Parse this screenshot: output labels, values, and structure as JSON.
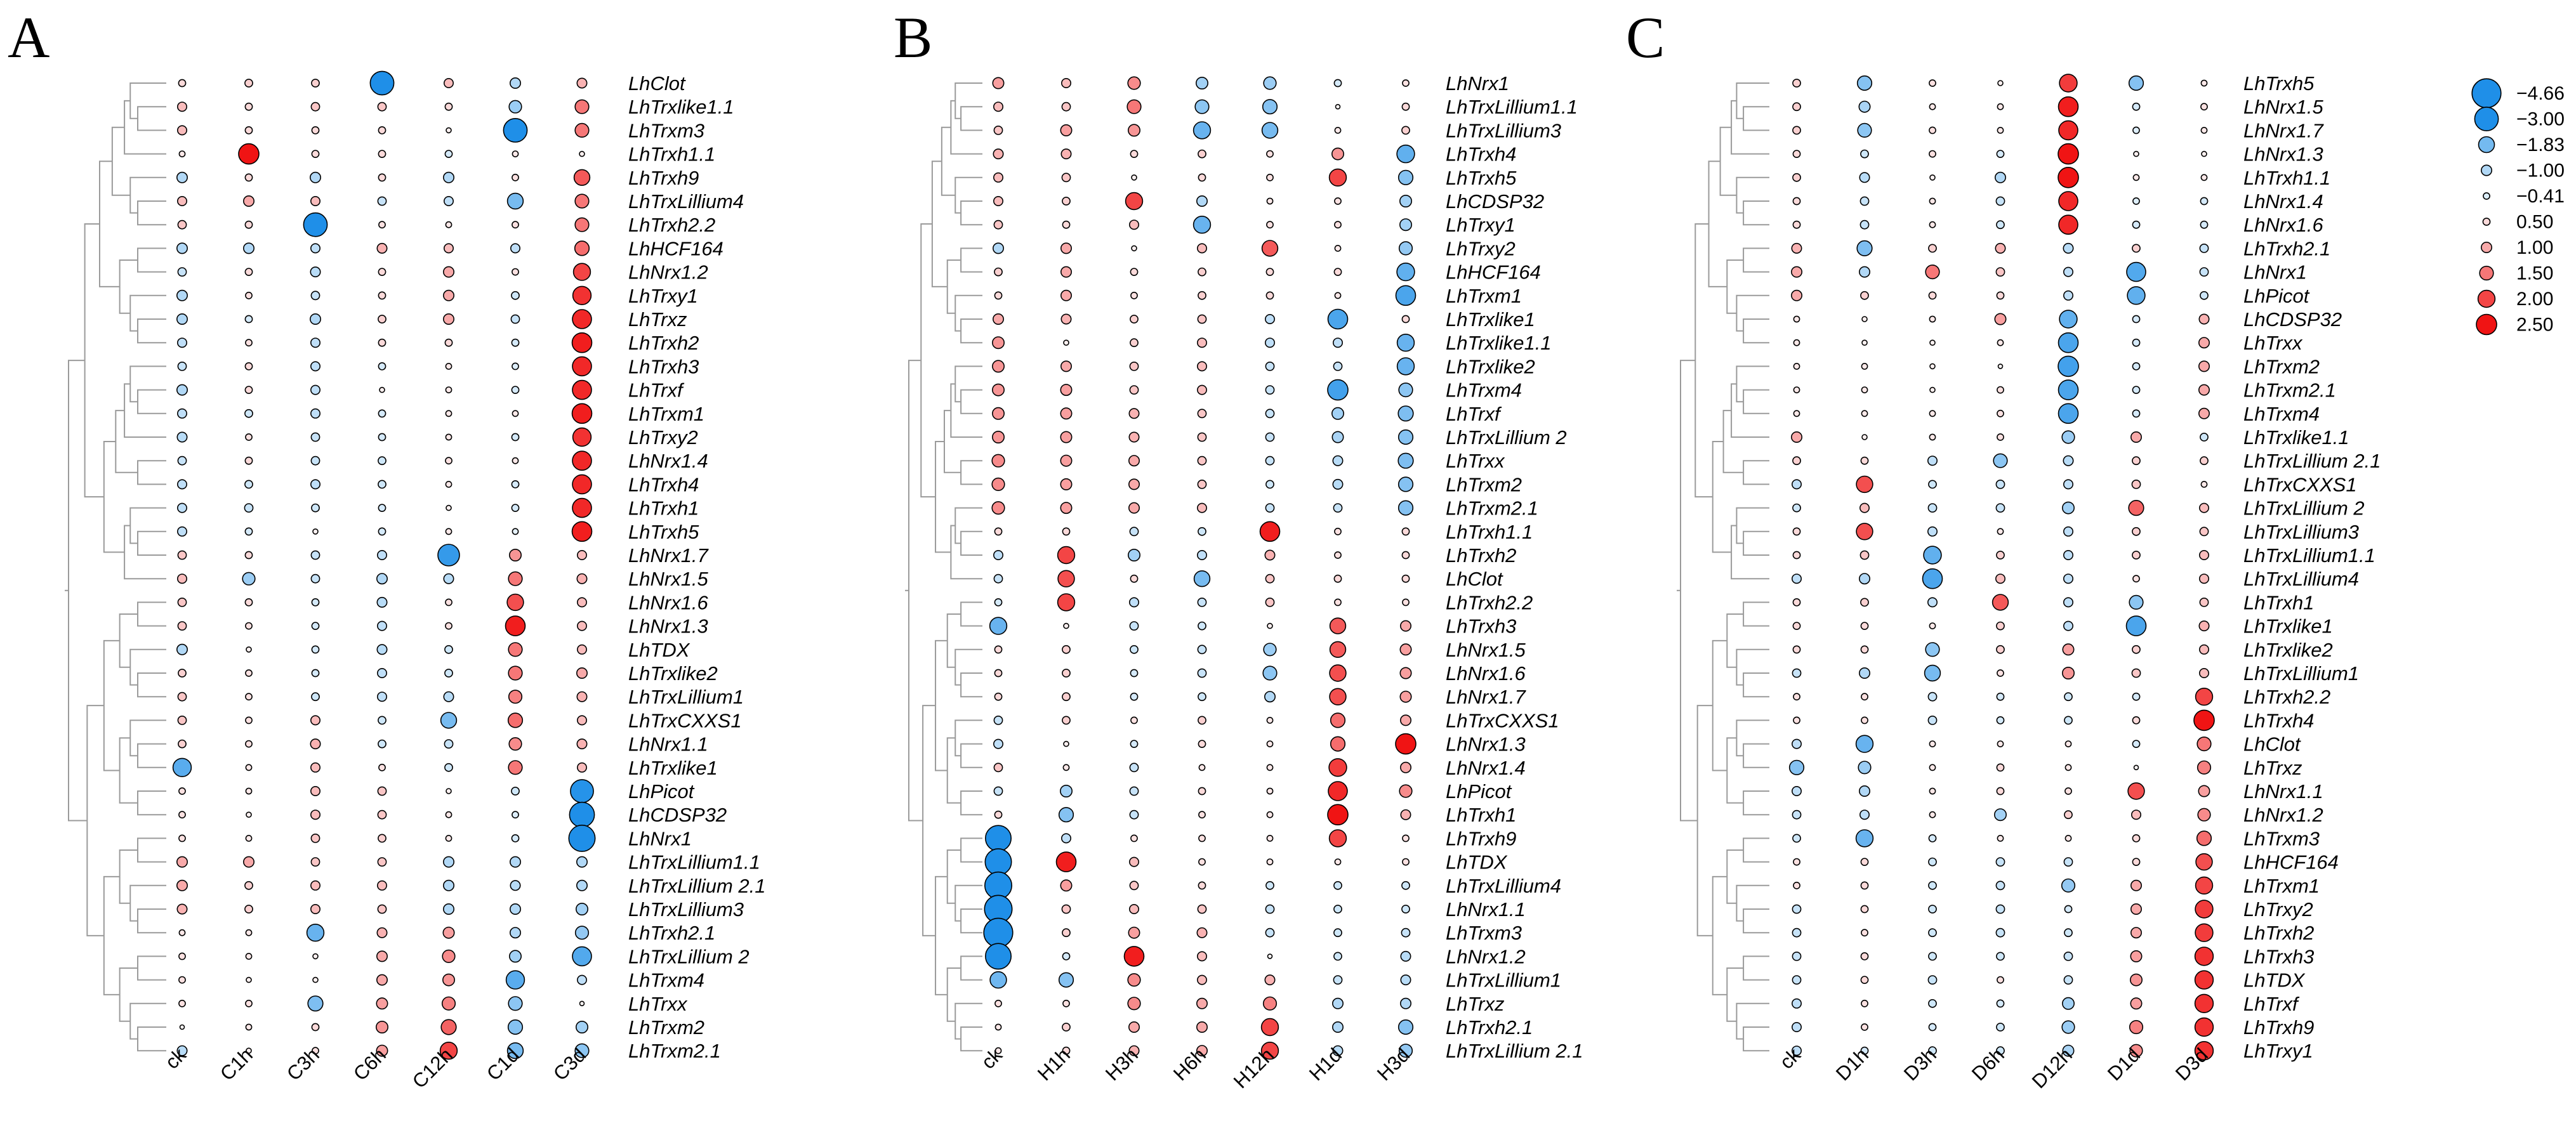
{
  "chart_data": [
    {
      "type": "heatmap",
      "panel_label": "A",
      "columns": [
        "ck",
        "C1h",
        "C3h",
        "C6h",
        "C12h",
        "C1d",
        "C3d"
      ],
      "rows": [
        "LhClot",
        "LhTrxlike1.1",
        "LhTrxm3",
        "LhTrxh1.1",
        "LhTrxh9",
        "LhTrxLillium4",
        "LhTrxh2.2",
        "LhHCF164",
        "LhNrx1.2",
        "LhTrxy1",
        "LhTrxz",
        "LhTrxh2",
        "LhTrxh3",
        "LhTrxf",
        "LhTrxm1",
        "LhTrxy2",
        "LhNrx1.4",
        "LhTrxh4",
        "LhTrxh1",
        "LhTrxh5",
        "LhNrx1.7",
        "LhNrx1.5",
        "LhNrx1.6",
        "LhNrx1.3",
        "LhTDX",
        "LhTrxlike2",
        "LhTrxLillium1",
        "LhTrxCXXS1",
        "LhNrx1.1",
        "LhTrxlike1",
        "LhPicot",
        "LhCDSP32",
        "LhNrx1",
        "LhTrxLillium1.1",
        "LhTrxLillium 2.1",
        "LhTrxLillium3",
        "LhTrxh2.1",
        "LhTrxLillium 2",
        "LhTrxm4",
        "LhTrxx",
        "LhTrxm2",
        "LhTrxm2.1"
      ],
      "values": [
        [
          0.5,
          0.6,
          0.6,
          -3.0,
          0.8,
          -1.0,
          0.9
        ],
        [
          0.8,
          0.5,
          0.7,
          0.7,
          0.5,
          -1.3,
          1.5
        ],
        [
          0.8,
          0.5,
          0.5,
          0.5,
          0.2,
          -3.0,
          1.5
        ],
        [
          0.3,
          2.5,
          0.5,
          0.5,
          -0.5,
          0.3,
          0.2
        ],
        [
          -1.0,
          0.5,
          -1.0,
          0.5,
          -1.0,
          0.4,
          1.8
        ],
        [
          0.8,
          1.0,
          0.8,
          -0.7,
          -0.8,
          -1.8,
          1.5
        ],
        [
          0.7,
          0.5,
          -3.0,
          0.4,
          0.3,
          0.4,
          1.5
        ],
        [
          -1.0,
          -1.0,
          -0.8,
          0.9,
          0.8,
          -0.8,
          1.6
        ],
        [
          -0.7,
          0.5,
          -0.9,
          0.5,
          1.0,
          0.4,
          2.0
        ],
        [
          -1.0,
          0.4,
          -0.7,
          0.5,
          1.0,
          -0.6,
          2.2
        ],
        [
          -1.0,
          -0.5,
          -1.0,
          0.6,
          1.0,
          -0.7,
          2.3
        ],
        [
          -0.8,
          0.4,
          -0.8,
          0.5,
          0.5,
          -0.5,
          2.4
        ],
        [
          -0.7,
          0.5,
          -0.8,
          -0.5,
          0.3,
          -0.4,
          2.3
        ],
        [
          -1.0,
          0.5,
          -0.8,
          0.2,
          0.3,
          -0.5,
          2.3
        ],
        [
          -0.8,
          -0.6,
          -0.8,
          -0.5,
          0.3,
          0.3,
          2.4
        ],
        [
          -0.9,
          0.4,
          -0.7,
          -0.5,
          0.3,
          -0.5,
          2.2
        ],
        [
          -0.7,
          0.5,
          -0.7,
          -0.6,
          0.4,
          0.3,
          2.3
        ],
        [
          -0.8,
          -0.6,
          -0.8,
          -0.6,
          0.3,
          -0.5,
          2.3
        ],
        [
          -0.8,
          -0.7,
          -0.6,
          -0.5,
          0.2,
          -0.5,
          2.3
        ],
        [
          -0.8,
          -0.5,
          0.2,
          -0.5,
          0.3,
          -0.3,
          2.4
        ],
        [
          0.7,
          0.5,
          -0.7,
          -0.8,
          -2.7,
          1.2,
          0.8
        ],
        [
          0.8,
          -1.3,
          -0.7,
          -1.0,
          -0.9,
          1.5,
          0.9
        ],
        [
          0.7,
          0.5,
          -0.5,
          -0.9,
          0.4,
          1.9,
          0.8
        ],
        [
          0.7,
          0.4,
          -0.5,
          -0.8,
          0.4,
          2.4,
          0.8
        ],
        [
          -1.0,
          0.2,
          -0.5,
          -0.9,
          -0.6,
          1.5,
          0.8
        ],
        [
          0.6,
          0.4,
          -0.5,
          -0.8,
          -0.6,
          1.5,
          1.0
        ],
        [
          0.7,
          0.4,
          -0.6,
          -0.8,
          -0.9,
          1.4,
          0.9
        ],
        [
          0.7,
          0.4,
          0.8,
          -0.6,
          -1.8,
          1.6,
          0.8
        ],
        [
          0.6,
          0.4,
          0.9,
          -0.6,
          -0.7,
          1.3,
          0.9
        ],
        [
          -2.2,
          0.3,
          0.8,
          0.4,
          -0.6,
          1.5,
          0.8
        ],
        [
          0.4,
          0.3,
          0.8,
          0.7,
          0.2,
          -0.6,
          -2.9
        ],
        [
          0.4,
          0.2,
          0.8,
          0.7,
          0.3,
          -0.4,
          -3.2
        ],
        [
          0.4,
          0.3,
          0.7,
          0.6,
          0.3,
          -0.5,
          -3.4
        ],
        [
          1.0,
          1.0,
          0.7,
          0.7,
          -1.0,
          -1.0,
          -1.0
        ],
        [
          1.0,
          0.6,
          0.8,
          0.8,
          -1.0,
          -0.9,
          -1.0
        ],
        [
          0.9,
          0.6,
          0.8,
          0.7,
          -1.0,
          -1.0,
          -1.2
        ],
        [
          0.3,
          0.3,
          -2.0,
          0.9,
          1.1,
          -1.0,
          -1.4
        ],
        [
          0.4,
          0.3,
          0.2,
          1.0,
          1.3,
          -1.2,
          -2.3
        ],
        [
          0.4,
          0.2,
          0.2,
          1.0,
          1.2,
          -2.2,
          -0.8
        ],
        [
          0.4,
          0.4,
          -1.7,
          1.1,
          1.4,
          -1.5,
          0.1
        ],
        [
          0.1,
          0.3,
          0.5,
          1.2,
          1.7,
          -1.6,
          -1.2
        ],
        [
          -0.9,
          0.2,
          0.4,
          1.1,
          2.0,
          -1.8,
          -1.5
        ]
      ]
    },
    {
      "type": "heatmap",
      "panel_label": "B",
      "columns": [
        "ck",
        "H1h",
        "H3h",
        "H6h",
        "H12h",
        "H1d",
        "H3d"
      ],
      "rows": [
        "LhNrx1",
        "LhTrxLillium1.1",
        "LhTrxLillium3",
        "LhTrxh4",
        "LhTrxh5",
        "LhCDSP32",
        "LhTrxy1",
        "LhTrxy2",
        "LhHCF164",
        "LhTrxm1",
        "LhTrxlike1",
        "LhTrxlike1.1",
        "LhTrxlike2",
        "LhTrxm4",
        "LhTrxf",
        "LhTrxLillium 2",
        "LhTrxx",
        "LhTrxm2",
        "LhTrxm2.1",
        "LhTrxh1.1",
        "LhTrxh2",
        "LhClot",
        "LhTrxh2.2",
        "LhTrxh3",
        "LhNrx1.5",
        "LhNrx1.6",
        "LhNrx1.7",
        "LhTrxCXXS1",
        "LhNrx1.3",
        "LhNrx1.4",
        "LhPicot",
        "LhTrxh1",
        "LhTrxh9",
        "LhTDX",
        "LhTrxLillium4",
        "LhNrx1.1",
        "LhTrxm3",
        "LhNrx1.2",
        "LhTrxLillium1",
        "LhTrxz",
        "LhTrxh2.1",
        "LhTrxLillium 2.1"
      ],
      "values": [
        [
          1.1,
          0.8,
          1.3,
          -1.2,
          -1.3,
          -0.5,
          0.4
        ],
        [
          0.8,
          0.7,
          1.5,
          -1.5,
          -1.6,
          0.1,
          0.5
        ],
        [
          0.7,
          1.1,
          1.2,
          -2.0,
          -1.8,
          0.3,
          0.6
        ],
        [
          0.9,
          0.9,
          0.5,
          0.6,
          0.4,
          1.2,
          -2.1
        ],
        [
          0.8,
          0.7,
          0.2,
          0.5,
          0.4,
          2.0,
          -1.6
        ],
        [
          0.8,
          0.6,
          2.0,
          -1.0,
          0.3,
          0.4,
          -1.2
        ],
        [
          0.7,
          0.5,
          0.8,
          -2.0,
          0.4,
          0.4,
          -1.2
        ],
        [
          -1.0,
          1.0,
          0.2,
          0.8,
          1.8,
          0.3,
          -1.4
        ],
        [
          0.6,
          1.0,
          0.5,
          0.6,
          0.5,
          0.5,
          -2.1
        ],
        [
          0.5,
          1.0,
          0.4,
          0.6,
          0.5,
          0.3,
          -2.4
        ],
        [
          1.0,
          0.9,
          0.6,
          0.7,
          -0.8,
          -2.4,
          0.5
        ],
        [
          1.2,
          0.2,
          0.6,
          0.8,
          -0.8,
          -0.8,
          -2.0
        ],
        [
          1.2,
          1.0,
          0.7,
          0.8,
          -0.7,
          -0.7,
          -2.0
        ],
        [
          1.2,
          1.1,
          0.7,
          0.8,
          -0.7,
          -2.5,
          -1.5
        ],
        [
          1.2,
          1.1,
          0.9,
          0.7,
          -0.7,
          -1.2,
          -1.7
        ],
        [
          1.2,
          1.1,
          0.9,
          0.7,
          -0.7,
          -1.1,
          -1.6
        ],
        [
          1.3,
          1.1,
          1.0,
          0.7,
          -0.7,
          -0.9,
          -1.7
        ],
        [
          1.3,
          1.1,
          1.0,
          0.7,
          -0.6,
          -0.9,
          -1.6
        ],
        [
          1.3,
          1.1,
          1.0,
          0.8,
          -0.7,
          -0.7,
          -1.6
        ],
        [
          0.5,
          0.5,
          -0.7,
          -0.6,
          2.4,
          0.4,
          0.5
        ],
        [
          -0.8,
          2.0,
          -1.2,
          -0.8,
          0.9,
          0.4,
          0.5
        ],
        [
          -0.7,
          1.9,
          0.5,
          -1.8,
          0.7,
          0.5,
          0.5
        ],
        [
          -0.5,
          2.0,
          -0.8,
          -0.7,
          0.7,
          0.4,
          0.4
        ],
        [
          -2.0,
          0.2,
          -0.7,
          -0.6,
          0.2,
          1.8,
          1.0
        ],
        [
          0.5,
          0.6,
          -0.6,
          -0.7,
          -1.3,
          1.8,
          1.1
        ],
        [
          0.5,
          0.6,
          -0.5,
          -0.7,
          -1.5,
          1.9,
          1.1
        ],
        [
          0.5,
          0.6,
          -0.5,
          -0.6,
          -1.0,
          1.9,
          1.1
        ],
        [
          -0.7,
          0.6,
          0.4,
          0.6,
          0.3,
          1.6,
          1.0
        ],
        [
          -0.8,
          0.2,
          -0.5,
          0.5,
          0.3,
          1.6,
          2.5
        ],
        [
          0.7,
          0.3,
          -0.7,
          0.3,
          0.3,
          2.1,
          1.0
        ],
        [
          -0.7,
          -1.2,
          -0.7,
          0.5,
          0.3,
          2.3,
          1.3
        ],
        [
          0.5,
          -1.6,
          -0.7,
          0.4,
          0.3,
          2.5,
          0.9
        ],
        [
          -3.3,
          -0.8,
          0.4,
          0.4,
          0.3,
          2.0,
          0.4
        ],
        [
          -3.4,
          2.4,
          0.8,
          0.4,
          0.3,
          0.3,
          0.4
        ],
        [
          -3.5,
          1.1,
          0.7,
          0.5,
          -0.6,
          -0.6,
          -0.6
        ],
        [
          -3.6,
          0.7,
          0.8,
          0.7,
          -0.7,
          -0.6,
          -0.6
        ],
        [
          -3.8,
          0.6,
          1.1,
          0.9,
          -0.7,
          -0.6,
          -0.7
        ],
        [
          -3.3,
          -0.5,
          2.4,
          0.8,
          0.1,
          -0.6,
          -0.9
        ],
        [
          -1.9,
          -1.6,
          1.3,
          0.8,
          0.9,
          -0.7,
          -0.9
        ],
        [
          0.4,
          0.4,
          1.3,
          1.0,
          1.4,
          -1.0,
          -1.0
        ],
        [
          0.3,
          0.6,
          1.0,
          1.0,
          2.0,
          -1.0,
          -1.6
        ],
        [
          0.3,
          0.5,
          0.9,
          1.0,
          2.0,
          -0.9,
          -1.4
        ]
      ]
    },
    {
      "type": "heatmap",
      "panel_label": "C",
      "columns": [
        "ck",
        "D1h",
        "D3h",
        "D6h",
        "D12h",
        "D1d",
        "D3d"
      ],
      "rows": [
        "LhTrxh5",
        "LhNrx1.5",
        "LhNrx1.7",
        "LhNrx1.3",
        "LhTrxh1.1",
        "LhNrx1.4",
        "LhNrx1.6",
        "LhTrxh2.1",
        "LhNrx1",
        "LhPicot",
        "LhCDSP32",
        "LhTrxx",
        "LhTrxm2",
        "LhTrxm2.1",
        "LhTrxm4",
        "LhTrxlike1.1",
        "LhTrxLillium 2.1",
        "LhTrxCXXS1",
        "LhTrxLillium 2",
        "LhTrxLillium3",
        "LhTrxLillium1.1",
        "LhTrxLillium4",
        "LhTrxh1",
        "LhTrxlike1",
        "LhTrxlike2",
        "LhTrxLillium1",
        "LhTrxh2.2",
        "LhTrxh4",
        "LhClot",
        "LhTrxz",
        "LhNrx1.1",
        "LhNrx1.2",
        "LhTrxm3",
        "LhHCF164",
        "LhTrxm1",
        "LhTrxy2",
        "LhTrxh2",
        "LhTrxh3",
        "LhTDX",
        "LhTrxf",
        "LhTrxh9",
        "LhTrxy1"
      ],
      "values": [
        [
          0.6,
          -1.6,
          0.4,
          0.2,
          2.1,
          -1.6,
          0.3
        ],
        [
          0.6,
          -1.1,
          0.3,
          0.3,
          2.4,
          -0.5,
          0.4
        ],
        [
          0.6,
          -1.5,
          0.4,
          0.3,
          2.3,
          -0.4,
          0.3
        ],
        [
          0.5,
          -0.6,
          0.4,
          -0.5,
          2.5,
          0.2,
          0.2
        ],
        [
          0.6,
          -0.9,
          0.2,
          -1.0,
          2.5,
          0.3,
          0.3
        ],
        [
          0.5,
          -0.7,
          0.3,
          -0.7,
          2.3,
          -0.4,
          -0.5
        ],
        [
          0.5,
          -0.7,
          0.3,
          -0.6,
          2.3,
          -0.5,
          -0.5
        ],
        [
          0.9,
          -1.7,
          0.6,
          0.9,
          -0.9,
          0.6,
          -0.7
        ],
        [
          1.0,
          -1.0,
          1.5,
          0.7,
          -0.8,
          -2.3,
          -0.7
        ],
        [
          1.0,
          0.6,
          0.5,
          0.5,
          -0.8,
          -2.1,
          -0.6
        ],
        [
          0.3,
          0.2,
          0.3,
          1.1,
          -2.1,
          -0.5,
          0.9
        ],
        [
          0.3,
          0.2,
          0.2,
          0.3,
          -2.4,
          -0.5,
          1.0
        ],
        [
          0.3,
          0.3,
          0.2,
          0.1,
          -2.5,
          -0.5,
          1.0
        ],
        [
          0.3,
          0.3,
          0.2,
          0.4,
          -2.4,
          -0.5,
          1.0
        ],
        [
          0.3,
          0.3,
          0.3,
          0.4,
          -2.4,
          -0.5,
          1.0
        ],
        [
          1.0,
          0.2,
          0.3,
          0.4,
          -1.3,
          1.0,
          -0.6
        ],
        [
          0.6,
          0.5,
          -0.8,
          -1.5,
          -0.9,
          0.6,
          0.6
        ],
        [
          -0.8,
          1.9,
          -0.6,
          -0.7,
          -0.8,
          0.7,
          0.3
        ],
        [
          -0.6,
          0.8,
          -0.7,
          -0.7,
          -1.2,
          1.7,
          0.8
        ],
        [
          0.5,
          1.9,
          -0.8,
          0.3,
          -0.8,
          0.6,
          0.7
        ],
        [
          0.5,
          0.7,
          -2.1,
          0.6,
          -0.8,
          0.6,
          0.8
        ],
        [
          -0.8,
          -1.0,
          -2.4,
          0.8,
          -0.8,
          0.4,
          0.8
        ],
        [
          0.5,
          0.6,
          -0.8,
          1.8,
          -0.8,
          -1.5,
          0.7
        ],
        [
          0.5,
          0.5,
          0.3,
          0.6,
          -0.8,
          -2.4,
          0.9
        ],
        [
          0.5,
          0.5,
          -1.5,
          0.6,
          1.1,
          0.6,
          0.8
        ],
        [
          -0.7,
          -1.0,
          -1.8,
          0.4,
          1.2,
          0.7,
          0.8
        ],
        [
          0.4,
          0.4,
          -0.7,
          -0.5,
          -0.6,
          -0.5,
          2.0
        ],
        [
          0.4,
          0.4,
          -0.7,
          -0.5,
          -0.6,
          0.5,
          2.5
        ],
        [
          -0.8,
          -2.0,
          0.3,
          0.3,
          0.3,
          -0.5,
          1.5
        ],
        [
          -1.6,
          -1.3,
          0.3,
          0.5,
          0.3,
          0.1,
          1.4
        ],
        [
          -0.8,
          -1.0,
          0.3,
          0.5,
          0.4,
          1.9,
          1.1
        ],
        [
          -0.7,
          -0.8,
          0.3,
          -1.2,
          0.6,
          0.8,
          1.3
        ],
        [
          -0.6,
          -2.0,
          -0.5,
          0.3,
          0.3,
          0.5,
          1.6
        ],
        [
          0.4,
          0.5,
          -0.6,
          -0.7,
          -0.7,
          0.5,
          1.9
        ],
        [
          0.4,
          0.5,
          -0.6,
          -0.7,
          -1.4,
          1.0,
          2.0
        ],
        [
          -0.7,
          0.5,
          -0.6,
          -0.7,
          -0.5,
          1.0,
          2.1
        ],
        [
          -0.7,
          0.4,
          -0.6,
          -0.7,
          -0.6,
          1.0,
          2.1
        ],
        [
          -0.7,
          0.5,
          -0.6,
          -0.6,
          -0.7,
          1.1,
          2.2
        ],
        [
          -0.7,
          0.5,
          -0.7,
          0.4,
          -0.7,
          1.2,
          2.2
        ],
        [
          -0.8,
          0.4,
          -0.6,
          -0.5,
          -1.2,
          1.1,
          2.2
        ],
        [
          -0.8,
          0.4,
          -0.5,
          -0.6,
          -1.3,
          1.4,
          2.2
        ],
        [
          -0.8,
          -0.5,
          -0.6,
          -0.6,
          -1.1,
          1.3,
          2.2
        ]
      ]
    }
  ],
  "legend": {
    "labels": [
      "−4.66",
      "−3.00",
      "−1.83",
      "−1.00",
      "−0.41",
      "0.50",
      "1.00",
      "1.50",
      "2.00",
      "2.50"
    ],
    "values": [
      -4.66,
      -3.0,
      -1.83,
      -1.0,
      -0.41,
      0.5,
      1.0,
      1.5,
      2.0,
      2.5
    ]
  },
  "colors": {
    "blue_strong": "#1f8fe8",
    "blue_light": "#d9ecfa",
    "white": "#ffffff",
    "red_light": "#fbdada",
    "red_strong": "#f01414",
    "outline": "#000000",
    "tree": "#9a9a9a"
  }
}
